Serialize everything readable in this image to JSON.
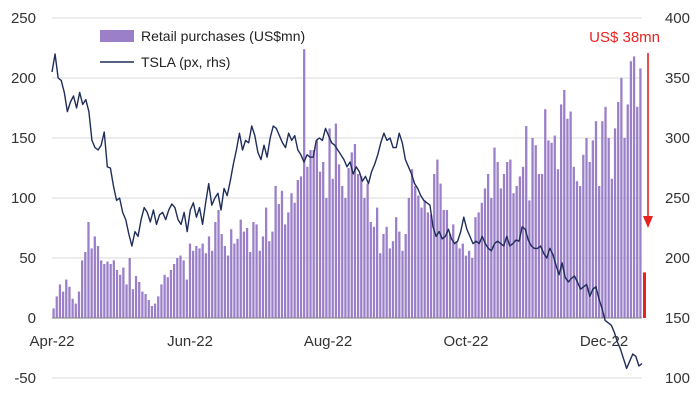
{
  "chart_data": {
    "type": "bar",
    "legend_position": "top-left",
    "grid": "horizontal",
    "colors": {
      "bars": "#9b7fc8",
      "line": "#1f2d5a",
      "annotation": "#e8231f",
      "grid": "#d9d9d9"
    },
    "x_ticks": [
      "Apr-22",
      "Jun-22",
      "Aug-22",
      "Oct-22",
      "Dec-22"
    ],
    "y_left_ticks": [
      "250",
      "200",
      "150",
      "100",
      "50",
      "0",
      "-50"
    ],
    "y_right_ticks": [
      "400",
      "350",
      "300",
      "250",
      "200",
      "150",
      "100"
    ],
    "ylim": [
      -50,
      250
    ],
    "y2lim": [
      100,
      400
    ],
    "series": [
      {
        "name": "Retail purchases (US$mn)",
        "axis": "left",
        "type": "bar",
        "values": [
          8,
          18,
          28,
          22,
          32,
          26,
          16,
          12,
          22,
          48,
          55,
          80,
          58,
          68,
          60,
          48,
          45,
          47,
          45,
          48,
          40,
          36,
          42,
          28,
          50,
          24,
          35,
          30,
          22,
          20,
          15,
          10,
          12,
          18,
          28,
          36,
          34,
          40,
          45,
          50,
          52,
          48,
          32,
          62,
          56,
          60,
          58,
          62,
          54,
          68,
          56,
          80,
          90,
          70,
          60,
          52,
          74,
          62,
          66,
          82,
          72,
          75,
          55,
          80,
          78,
          56,
          68,
          92,
          64,
          72,
          110,
          95,
          106,
          78,
          88,
          104,
          96,
          115,
          118,
          224,
          126,
          140,
          140,
          148,
          122,
          130,
          100,
          158,
          116,
          162,
          128,
          110,
          100,
          125,
          138,
          145,
          120,
          118,
          100,
          112,
          80,
          76,
          92,
          54,
          70,
          76,
          58,
          64,
          84,
          72,
          56,
          70,
          100,
          124,
          110,
          102,
          92,
          98,
          88,
          86,
          120,
          132,
          112,
          90,
          90,
          70,
          78,
          64,
          58,
          62,
          52,
          56,
          50,
          84,
          88,
          96,
          108,
          120,
          100,
          142,
          130,
          108,
          120,
          130,
          132,
          104,
          110,
          118,
          126,
          160,
          98,
          150,
          144,
          120,
          120,
          174,
          148,
          146,
          152,
          124,
          178,
          190,
          166,
          172,
          126,
          114,
          110,
          136,
          150,
          130,
          148,
          164,
          110,
          164,
          176,
          150,
          116,
          158,
          180,
          200,
          150,
          178,
          214,
          218,
          176,
          208
        ]
      },
      {
        "name": "TSLA (px, rhs)",
        "axis": "right",
        "type": "line",
        "values": [
          355,
          370,
          350,
          348,
          338,
          322,
          330,
          335,
          325,
          338,
          328,
          332,
          322,
          298,
          292,
          290,
          294,
          305,
          276,
          275,
          260,
          248,
          250,
          238,
          232,
          220,
          210,
          222,
          218,
          232,
          242,
          238,
          230,
          240,
          228,
          236,
          238,
          232,
          240,
          245,
          242,
          232,
          228,
          238,
          222,
          240,
          246,
          234,
          242,
          228,
          246,
          262,
          244,
          250,
          254,
          240,
          258,
          252,
          264,
          278,
          290,
          304,
          290,
          298,
          296,
          310,
          302,
          288,
          282,
          294,
          284,
          300,
          310,
          308,
          302,
          296,
          292,
          304,
          298,
          302,
          290,
          286,
          280,
          286,
          284,
          284,
          298,
          300,
          298,
          308,
          302,
          296,
          294,
          290,
          286,
          282,
          276,
          280,
          270,
          276,
          272,
          264,
          268,
          262,
          272,
          278,
          286,
          296,
          304,
          298,
          300,
          292,
          292,
          304,
          296,
          282,
          276,
          270,
          262,
          258,
          252,
          248,
          246,
          244,
          226,
          218,
          222,
          216,
          218,
          224,
          216,
          212,
          214,
          222,
          234,
          224,
          218,
          212,
          214,
          212,
          218,
          212,
          208,
          206,
          212,
          214,
          212,
          210,
          218,
          210,
          212,
          215,
          214,
          226,
          224,
          215,
          210,
          208,
          208,
          210,
          204,
          200,
          208,
          203,
          194,
          186,
          196,
          184,
          180,
          183,
          185,
          180,
          174,
          176,
          178,
          168,
          174,
          176,
          166,
          158,
          148,
          146,
          144,
          138,
          130,
          124,
          116,
          108,
          114,
          120,
          118,
          110,
          112
        ]
      }
    ],
    "annotations": [
      {
        "text": "US$ 38mn",
        "value": 38,
        "axis": "left"
      }
    ]
  }
}
